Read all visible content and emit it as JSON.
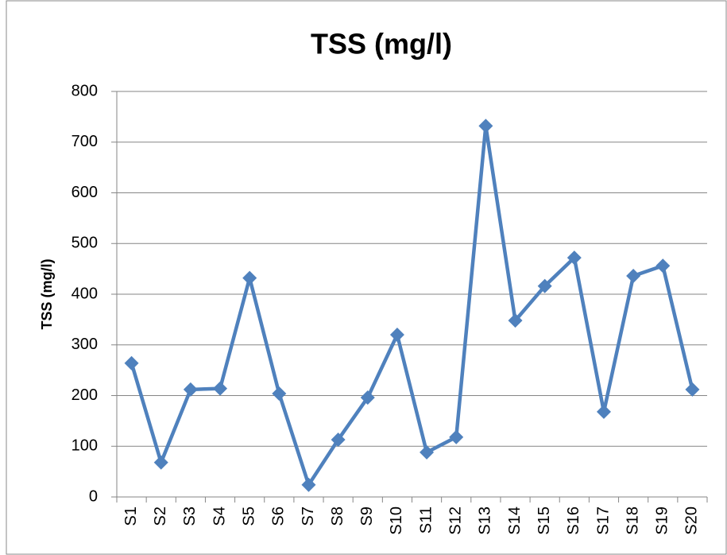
{
  "chart_data": {
    "type": "line",
    "title": "TSS (mg/l)",
    "y_label": "TSS (mg/l)",
    "categories": [
      "S1",
      "S2",
      "S3",
      "S4",
      "S5",
      "S6",
      "S7",
      "S8",
      "S9",
      "S10",
      "S11",
      "S12",
      "S13",
      "S14",
      "S15",
      "S16",
      "S17",
      "S18",
      "S19",
      "S20"
    ],
    "series": [
      {
        "name": "TSS (mg/l)",
        "color": "#4f81bd",
        "values": [
          264,
          68,
          212,
          214,
          432,
          204,
          24,
          113,
          196,
          320,
          88,
          118,
          732,
          348,
          416,
          472,
          168,
          436,
          456,
          212
        ]
      }
    ],
    "ylim": [
      0,
      800
    ],
    "yticks": [
      0,
      100,
      200,
      300,
      400,
      500,
      600,
      700,
      800
    ],
    "grid": true
  }
}
